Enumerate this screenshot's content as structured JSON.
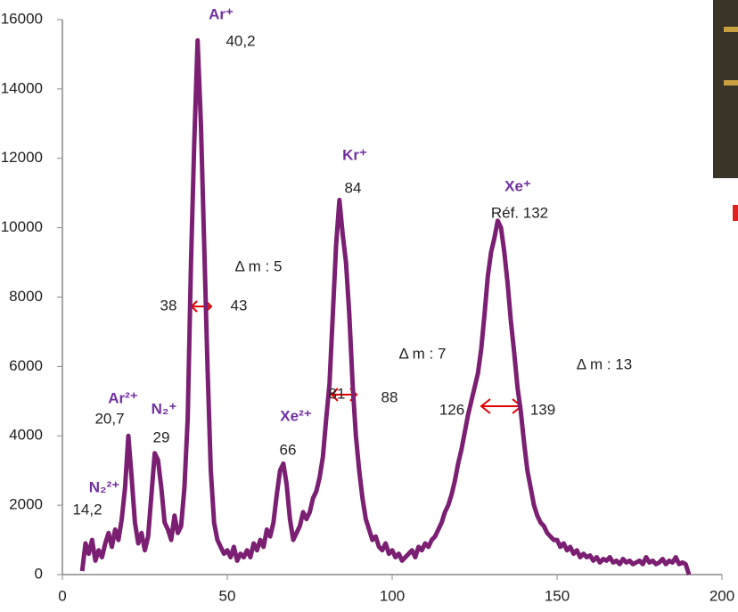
{
  "chart_data": {
    "type": "line",
    "x": [
      6,
      7,
      8,
      9,
      10,
      11,
      12,
      13,
      14,
      15,
      16,
      17,
      18,
      19,
      20,
      21,
      22,
      23,
      24,
      25,
      26,
      27,
      28,
      29,
      30,
      31,
      32,
      33,
      34,
      35,
      36,
      37,
      38,
      39,
      40,
      41,
      42,
      43,
      44,
      45,
      46,
      47,
      48,
      49,
      50,
      51,
      52,
      53,
      54,
      55,
      56,
      57,
      58,
      59,
      60,
      61,
      62,
      63,
      64,
      65,
      66,
      67,
      68,
      69,
      70,
      71,
      72,
      73,
      74,
      75,
      76,
      77,
      78,
      79,
      80,
      81,
      82,
      83,
      84,
      85,
      86,
      87,
      88,
      89,
      90,
      91,
      92,
      93,
      94,
      95,
      96,
      97,
      98,
      99,
      100,
      101,
      102,
      103,
      104,
      105,
      106,
      107,
      108,
      109,
      110,
      111,
      112,
      113,
      114,
      115,
      116,
      117,
      118,
      119,
      120,
      121,
      122,
      123,
      124,
      125,
      126,
      127,
      128,
      129,
      130,
      131,
      132,
      133,
      134,
      135,
      136,
      137,
      138,
      139,
      140,
      141,
      142,
      143,
      144,
      145,
      146,
      147,
      148,
      149,
      150,
      151,
      152,
      153,
      154,
      155,
      156,
      157,
      158,
      159,
      160,
      161,
      162,
      163,
      164,
      165,
      166,
      167,
      168,
      169,
      170,
      171,
      172,
      173,
      174,
      175,
      176,
      177,
      178,
      179,
      180,
      181,
      182,
      183,
      184,
      185,
      186,
      187,
      188,
      189,
      190
    ],
    "series": [
      {
        "color": "#7b1f72",
        "values": [
          100,
          900,
          600,
          1000,
          400,
          700,
          500,
          900,
          1200,
          800,
          1300,
          1000,
          1600,
          2500,
          4000,
          2800,
          1500,
          900,
          1200,
          700,
          1100,
          2300,
          3500,
          3300,
          2500,
          1500,
          1300,
          1000,
          1700,
          1200,
          1400,
          2500,
          4500,
          9000,
          12500,
          15400,
          13000,
          9500,
          6000,
          3000,
          1500,
          1000,
          800,
          600,
          700,
          500,
          800,
          400,
          600,
          500,
          700,
          500,
          900,
          700,
          1000,
          800,
          1300,
          1100,
          1500,
          2300,
          3000,
          3200,
          2600,
          1600,
          1000,
          1200,
          1400,
          1800,
          1600,
          1800,
          2200,
          2400,
          2800,
          3400,
          4500,
          5500,
          7500,
          9500,
          10800,
          9800,
          9000,
          7500,
          5500,
          4000,
          3000,
          2200,
          1600,
          1300,
          1000,
          1100,
          800,
          700,
          900,
          600,
          700,
          500,
          600,
          400,
          500,
          600,
          700,
          500,
          800,
          700,
          900,
          800,
          1000,
          1100,
          1300,
          1500,
          1800,
          2000,
          2300,
          2700,
          3200,
          3600,
          4100,
          4600,
          5000,
          5400,
          5800,
          6500,
          7500,
          8600,
          9300,
          9700,
          10200,
          10000,
          9300,
          8400,
          7300,
          6400,
          5400,
          4700,
          3800,
          3000,
          2500,
          2000,
          1700,
          1500,
          1400,
          1200,
          1100,
          1000,
          1000,
          800,
          900,
          700,
          800,
          600,
          700,
          500,
          600,
          500,
          550,
          400,
          500,
          350,
          450,
          400,
          500,
          350,
          400,
          300,
          450,
          350,
          400,
          300,
          350,
          400,
          300,
          500,
          350,
          400,
          300,
          350,
          450,
          300,
          400,
          350,
          500,
          300,
          350,
          300,
          0
        ]
      }
    ],
    "xlim": [
      0,
      200
    ],
    "xticks": [
      0,
      50,
      100,
      150,
      200
    ],
    "ylim": [
      0,
      16000
    ],
    "yticks": [
      0,
      2000,
      4000,
      6000,
      8000,
      10000,
      12000,
      14000,
      16000
    ],
    "annotations": [
      "Ar⁺",
      "40,2",
      "Kr⁺",
      "84",
      "Xe⁺",
      "Réf. 132",
      "Δ m : 5",
      "38",
      "43",
      "Δ m : 7",
      "Δ m : 13",
      "81",
      "88",
      "126",
      "139",
      "Ar²⁺",
      "20,7",
      "N₂⁺",
      "29",
      "Xe²⁺",
      "66",
      "N₂²⁺",
      "14,2"
    ]
  }
}
